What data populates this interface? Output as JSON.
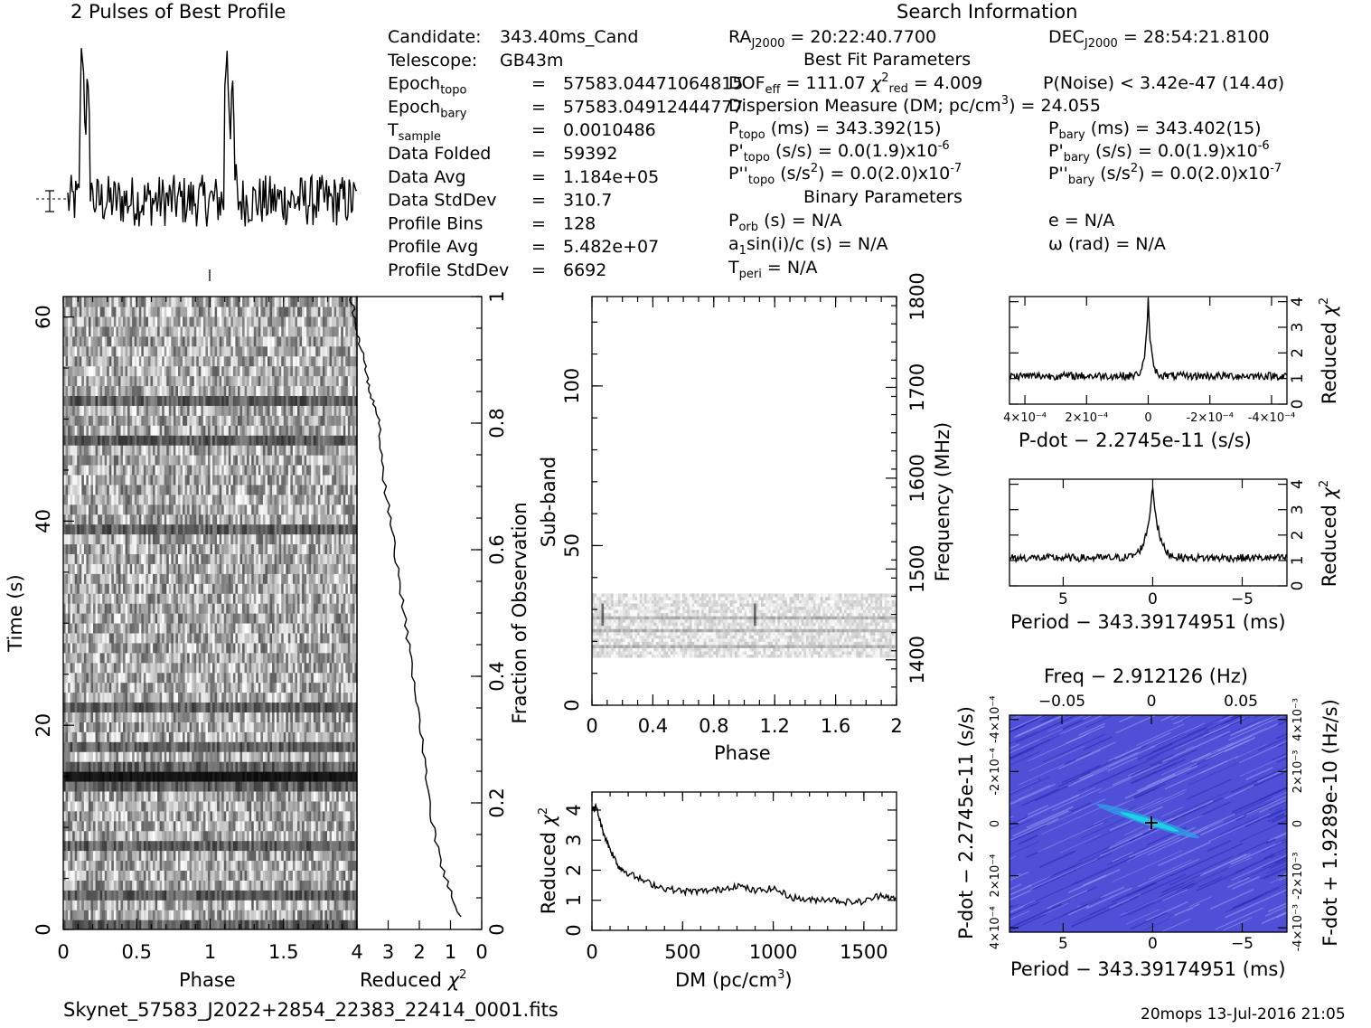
{
  "header": {
    "profile_title": "2 Pulses of Best Profile",
    "search_title": "Search Information",
    "best_fit_title": "Best Fit Parameters",
    "binary_title": "Binary Parameters"
  },
  "info_left": [
    {
      "label": "Candidate:",
      "value": "343.40ms_Cand"
    },
    {
      "label": "Telescope:",
      "value": "GB43m"
    },
    {
      "label": "Epoch",
      "sub": "topo",
      "eq": "=",
      "value": "57583.04471064815"
    },
    {
      "label": "Epoch",
      "sub": "bary",
      "eq": "=",
      "value": "57583.04912444777"
    },
    {
      "label": "T",
      "sub": "sample",
      "eq": "=",
      "value": "0.0010486"
    },
    {
      "label": "Data Folded",
      "eq": "=",
      "value": "59392"
    },
    {
      "label": "Data Avg",
      "eq": "=",
      "value": "1.184e+05"
    },
    {
      "label": "Data StdDev",
      "eq": "=",
      "value": "310.7"
    },
    {
      "label": "Profile Bins",
      "eq": "=",
      "value": "128"
    },
    {
      "label": "Profile Avg",
      "eq": "=",
      "value": "5.482e+07"
    },
    {
      "label": "Profile StdDev",
      "eq": "=",
      "value": "6692"
    }
  ],
  "search_info": {
    "ra": "RA J2000 = 20:22:40.7700",
    "dec": "DEC J2000 = 28:54:21.8100",
    "dof": "DOF eff = 111.07",
    "chi2": "χ2 red = 4.009",
    "pnoise": "P(Noise) < 3.42e-47   (14.4σ)",
    "dm": "Dispersion Measure (DM; pc/cm3) = 24.055",
    "ptopo": "P topo (ms) =  343.392(15)",
    "pbary": "P bary (ms) =  343.402(15)",
    "pdtopo": "P' topo (s/s) = 0.0(1.9)x10-6",
    "pdbary": "P' bary (s/s) = 0.0(1.9)x10-6",
    "pddtopo": "P'' topo (s/s2) = 0.0(2.0)x10-7",
    "pddbary": "P'' bary (s/s2) = 0.0(2.0)x10-7",
    "porb": "P orb (s) = N/A",
    "e": "e = N/A",
    "a1": "a1sin(i)/c (s) = N/A",
    "omega": "ω (rad) = N/A",
    "tperi": "T peri = N/A"
  },
  "footer": {
    "filename": "Skynet_57583_J2022+2854_22383_22414_0001.fits",
    "stamp": "20mops 13-Jul-2016 21:05"
  },
  "colors": {
    "ink": "#000000",
    "plane_bg": "#4f4fd8",
    "plane_hot": "#18d2e6"
  },
  "chart_data": [
    {
      "type": "line",
      "title": "2 Pulses of Best Profile",
      "x": [
        0,
        0.1,
        0.13,
        0.2,
        0.5,
        1.0,
        1.1,
        1.13,
        1.2,
        1.5,
        2.0
      ],
      "y": [
        0.02,
        1.0,
        0.72,
        0.05,
        0.02,
        0.02,
        1.0,
        0.72,
        0.05,
        0.02,
        0.02
      ]
    },
    {
      "type": "heatmap",
      "xlabel": "Phase",
      "ylabel": "Time (s)",
      "xlim": [
        0,
        2
      ],
      "ylim": [
        0,
        62
      ],
      "x_ticks": [
        0,
        0.5,
        1,
        1.5
      ],
      "y_ticks": [
        0,
        20,
        40,
        60
      ]
    },
    {
      "type": "line",
      "xlabel": "Reduced χ2",
      "ylabel": "Fraction of Observation",
      "xlim": [
        4,
        0
      ],
      "ylim": [
        0,
        1
      ],
      "x_ticks": [
        4,
        3,
        2,
        1,
        0
      ],
      "y_ticks": [
        0,
        0.2,
        0.4,
        0.6,
        0.8,
        1
      ],
      "x": [
        0.7,
        1.3,
        1.7,
        1.9,
        2.2,
        2.5,
        2.8,
        3.1,
        3.3,
        3.6,
        3.8,
        4.0,
        4.2
      ],
      "y": [
        0.02,
        0.1,
        0.2,
        0.3,
        0.4,
        0.5,
        0.6,
        0.7,
        0.8,
        0.85,
        0.9,
        0.95,
        1.0
      ]
    },
    {
      "type": "heatmap",
      "xlabel": "Phase",
      "ylabel": "Sub-band",
      "ylabel2": "Frequency (MHz)",
      "xlim": [
        0,
        2
      ],
      "ylim": [
        0,
        128
      ],
      "x_ticks": [
        0,
        0.4,
        0.8,
        1.2,
        1.6,
        2
      ],
      "y_ticks": [
        0,
        50,
        100
      ],
      "y2_ticks": [
        1400,
        1500,
        1600,
        1700,
        1800
      ],
      "occupied_subbands": [
        15,
        35
      ]
    },
    {
      "type": "line",
      "xlabel": "DM (pc/cm3)",
      "ylabel": "Reduced χ2",
      "xlim": [
        0,
        1680
      ],
      "ylim": [
        0,
        4.6
      ],
      "x_ticks": [
        0,
        500,
        1000,
        1500
      ],
      "y_ticks": [
        0,
        1,
        2,
        3,
        4
      ],
      "x": [
        0,
        24,
        60,
        100,
        150,
        200,
        300,
        400,
        500,
        600,
        700,
        800,
        900,
        1000,
        1100,
        1200,
        1300,
        1400,
        1500,
        1600,
        1680
      ],
      "y": [
        4.0,
        4.1,
        3.3,
        2.7,
        2.1,
        1.9,
        1.6,
        1.4,
        1.3,
        1.3,
        1.35,
        1.5,
        1.3,
        1.4,
        1.1,
        1.0,
        1.05,
        0.95,
        0.95,
        1.2,
        1.0
      ]
    },
    {
      "type": "line",
      "xlabel": "P-dot - 2.2745e-11 (s/s)",
      "ylabel": "Reduced χ2",
      "xlim": [
        0.00045,
        -0.00045
      ],
      "ylim": [
        0,
        4.2
      ],
      "x_ticks": [
        "4x10-4",
        "2x10-4",
        "0",
        "-2x10-4",
        "-4x10-4"
      ],
      "y_ticks": [
        0,
        1,
        2,
        3,
        4
      ],
      "x": [
        0.00045,
        0.0003,
        0.0001,
        2e-05,
        0,
        -2e-05,
        -0.0001,
        -0.0003,
        -0.00045
      ],
      "y": [
        1.1,
        1.05,
        1.1,
        1.8,
        4.0,
        1.8,
        1.1,
        1.1,
        1.1
      ]
    },
    {
      "type": "line",
      "xlabel": "Period - 343.39174951 (ms)",
      "ylabel": "Reduced χ2",
      "xlim": [
        8,
        -7.5
      ],
      "ylim": [
        0,
        4.2
      ],
      "x_ticks": [
        5,
        0,
        -5
      ],
      "y_ticks": [
        0,
        1,
        2,
        3,
        4
      ],
      "x": [
        8,
        5,
        2,
        0.5,
        0,
        -0.5,
        -2,
        -5,
        -7.5
      ],
      "y": [
        1.1,
        1.2,
        1.4,
        2.0,
        4.0,
        2.0,
        1.0,
        1.1,
        1.0
      ]
    },
    {
      "type": "heatmap",
      "title": "Freq - 2.912126 (Hz)",
      "xlabel": "Period - 343.39174951 (ms)",
      "ylabel": "P-dot - 2.2745e-11 (s/s)",
      "ylabel2": "F-dot + 1.9289e-10 (Hz/s)",
      "xlim": [
        8,
        -7.5
      ],
      "x_ticks": [
        5,
        0,
        -5
      ],
      "top_ticks": [
        -0.05,
        0,
        0.05
      ],
      "y_ticks": [
        "4x10-4",
        "2x10-4",
        "0",
        "-2x10-4",
        "-4x10-4"
      ],
      "y2_ticks": [
        "4x10-3",
        "2x10-3",
        "0",
        "-2x10-3",
        "-4x10-3"
      ]
    }
  ]
}
